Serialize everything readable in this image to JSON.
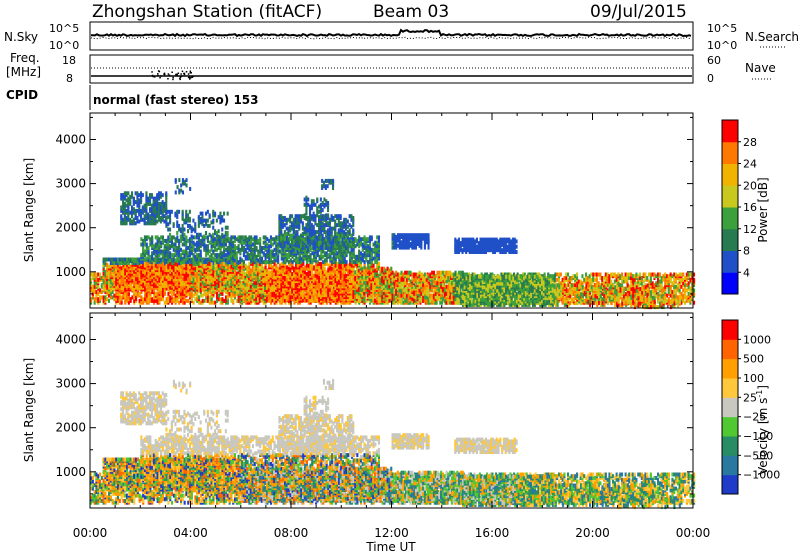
{
  "header": {
    "station": "Zhongshan Station (fitACF)",
    "beam": "Beam 03",
    "date": "09/Jul/2015"
  },
  "top_panels": {
    "nsky_label": "N.Sky",
    "nsky_ticks": [
      "10^5",
      "10^0"
    ],
    "nsearch_label": "N.Search",
    "nsearch_ticks": [
      "10^5",
      "10^0"
    ],
    "freq_label_1": "Freq.",
    "freq_label_2": "[MHz]",
    "freq_ticks": [
      "18",
      "8"
    ],
    "nave_label": "Nave",
    "nave_ticks": [
      "60",
      "0"
    ],
    "cpid_label": "CPID",
    "cpid_value": "normal (fast stereo) 153"
  },
  "chart_data": [
    {
      "type": "heatmap",
      "name": "power-panel",
      "ylabel": "Slant Range [km]",
      "yticks": [
        "1000",
        "2000",
        "3000",
        "4000"
      ],
      "ylim": [
        180,
        4600
      ],
      "colorbar_label": "Power [dB]",
      "colorbar_ticks": [
        "4",
        "8",
        "12",
        "16",
        "20",
        "24",
        "28"
      ],
      "colors": [
        "#0000ff",
        "#2050c8",
        "#287a50",
        "#3ca03c",
        "#c8c81e",
        "#f0b400",
        "#ff7800",
        "#ff0000"
      ]
    },
    {
      "type": "heatmap",
      "name": "velocity-panel",
      "ylabel": "Slant Range [km]",
      "yticks": [
        "1000",
        "2000",
        "3000",
        "4000"
      ],
      "ylim": [
        180,
        4600
      ],
      "colorbar_label": "Velocity [m s",
      "colorbar_label_sup": "-1",
      "colorbar_label_end": "]",
      "colorbar_ticks": [
        "1000",
        "500",
        "100",
        "25",
        "−25",
        "−100",
        "−500",
        "−1000"
      ],
      "colors": [
        "#1e3cc8",
        "#2878a0",
        "#288c64",
        "#50c832",
        "#c8c8c0",
        "#ffc83c",
        "#ffa000",
        "#ff6400",
        "#ff0000"
      ],
      "xlabel": "Time UT",
      "xticks": [
        "00:00",
        "04:00",
        "08:00",
        "12:00",
        "16:00",
        "20:00",
        "00:00"
      ]
    }
  ]
}
